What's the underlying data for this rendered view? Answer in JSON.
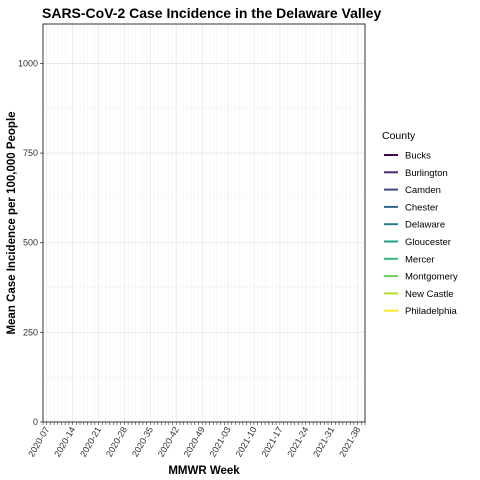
{
  "chart_data": {
    "type": "line",
    "title": "SARS-CoV-2 Case Incidence in the Delaware Valley",
    "xlabel": "MMWR Week",
    "ylabel": "Mean Case Incidence per 100,000 People",
    "ylim": [
      0,
      1110
    ],
    "y_ticks": [
      0,
      250,
      500,
      750,
      1000
    ],
    "x_ticks": [
      "2020-07",
      "2020-14",
      "2020-21",
      "2020-28",
      "2020-35",
      "2020-42",
      "2020-49",
      "2021-03",
      "2021-10",
      "2021-17",
      "2021-24",
      "2021-31",
      "2021-38"
    ],
    "x_ticks_at": [
      7,
      14,
      21,
      28,
      35,
      42,
      49,
      56,
      63,
      70,
      77,
      84,
      91
    ],
    "x_range": [
      6,
      93
    ],
    "grid": true,
    "legend": {
      "title": "County",
      "position": "right"
    },
    "series": [
      {
        "name": "Bucks",
        "color": "#440154",
        "values": []
      },
      {
        "name": "Burlington",
        "color": "#482878",
        "values": []
      },
      {
        "name": "Camden",
        "color": "#3E4A89",
        "values": []
      },
      {
        "name": "Chester",
        "color": "#31688E",
        "values": []
      },
      {
        "name": "Delaware",
        "color": "#26828E",
        "values": []
      },
      {
        "name": "Gloucester",
        "color": "#1F9E89",
        "values": []
      },
      {
        "name": "Mercer",
        "color": "#35B779",
        "values": []
      },
      {
        "name": "Montgomery",
        "color": "#6DCD59",
        "values": []
      },
      {
        "name": "New Castle",
        "color": "#B4DE2C",
        "values": []
      },
      {
        "name": "Philadelphia",
        "color": "#FDE725",
        "values": []
      }
    ]
  }
}
